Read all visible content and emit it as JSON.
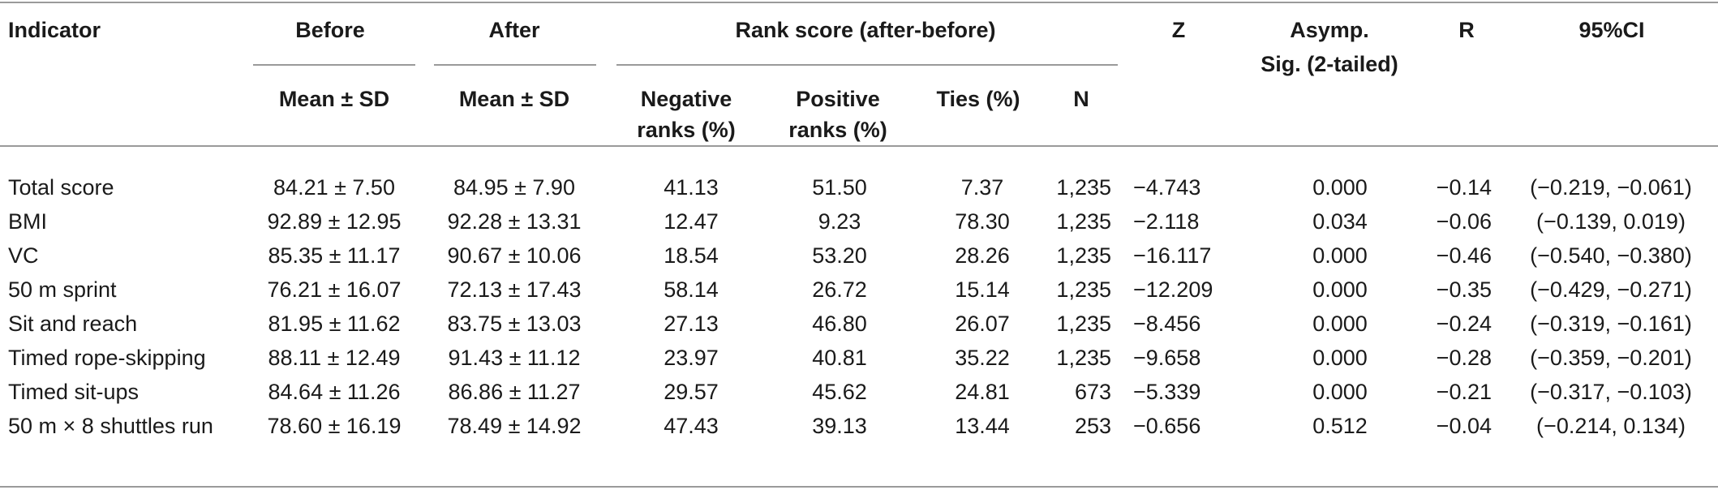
{
  "headers": {
    "indicator": "Indicator",
    "before": "Before",
    "after": "After",
    "rank_score": "Rank score (after-before)",
    "z": "Z",
    "asymp_line1": "Asymp.",
    "asymp_line2": "Sig. (2-tailed)",
    "r": "R",
    "ci": "95%CI",
    "before_sub": "Mean ± SD",
    "after_sub": "Mean ± SD",
    "negative_line1": "Negative",
    "negative_line2": "ranks (%)",
    "positive_line1": "Positive",
    "positive_line2": "ranks (%)",
    "ties": "Ties (%)",
    "n": "N"
  },
  "rows": [
    {
      "indicator": "Total score",
      "before": "84.21 ± 7.50",
      "after": "84.95 ± 7.90",
      "neg": "41.13",
      "pos": "51.50",
      "ties": "7.37",
      "n": "1,235",
      "z": "−4.743",
      "sig": "0.000",
      "r": "−0.14",
      "ci": "(−0.219, −0.061)"
    },
    {
      "indicator": "BMI",
      "before": "92.89 ± 12.95",
      "after": "92.28 ± 13.31",
      "neg": "12.47",
      "pos": "9.23",
      "ties": "78.30",
      "n": "1,235",
      "z": "−2.118",
      "sig": "0.034",
      "r": "−0.06",
      "ci": "(−0.139, 0.019)"
    },
    {
      "indicator": "VC",
      "before": "85.35 ± 11.17",
      "after": "90.67 ± 10.06",
      "neg": "18.54",
      "pos": "53.20",
      "ties": "28.26",
      "n": "1,235",
      "z": "−16.117",
      "sig": "0.000",
      "r": "−0.46",
      "ci": "(−0.540, −0.380)"
    },
    {
      "indicator": "50 m sprint",
      "before": "76.21 ± 16.07",
      "after": "72.13 ± 17.43",
      "neg": "58.14",
      "pos": "26.72",
      "ties": "15.14",
      "n": "1,235",
      "z": "−12.209",
      "sig": "0.000",
      "r": "−0.35",
      "ci": "(−0.429, −0.271)"
    },
    {
      "indicator": "Sit and reach",
      "before": "81.95 ± 11.62",
      "after": "83.75 ± 13.03",
      "neg": "27.13",
      "pos": "46.80",
      "ties": "26.07",
      "n": "1,235",
      "z": "−8.456",
      "sig": "0.000",
      "r": "−0.24",
      "ci": "(−0.319, −0.161)"
    },
    {
      "indicator": "Timed rope-skipping",
      "before": "88.11 ± 12.49",
      "after": "91.43 ± 11.12",
      "neg": "23.97",
      "pos": "40.81",
      "ties": "35.22",
      "n": "1,235",
      "z": "−9.658",
      "sig": "0.000",
      "r": "−0.28",
      "ci": "(−0.359, −0.201)"
    },
    {
      "indicator": "Timed sit-ups",
      "before": "84.64 ± 11.26",
      "after": "86.86 ± 11.27",
      "neg": "29.57",
      "pos": "45.62",
      "ties": "24.81",
      "n": "673",
      "z": "−5.339",
      "sig": "0.000",
      "r": "−0.21",
      "ci": "(−0.317, −0.103)"
    },
    {
      "indicator": "50 m × 8 shuttles run",
      "before": "78.60 ± 16.19",
      "after": "78.49 ± 14.92",
      "neg": "47.43",
      "pos": "39.13",
      "ties": "13.44",
      "n": "253",
      "z": "−0.656",
      "sig": "0.512",
      "r": "−0.04",
      "ci": "(−0.214, 0.134)"
    }
  ]
}
